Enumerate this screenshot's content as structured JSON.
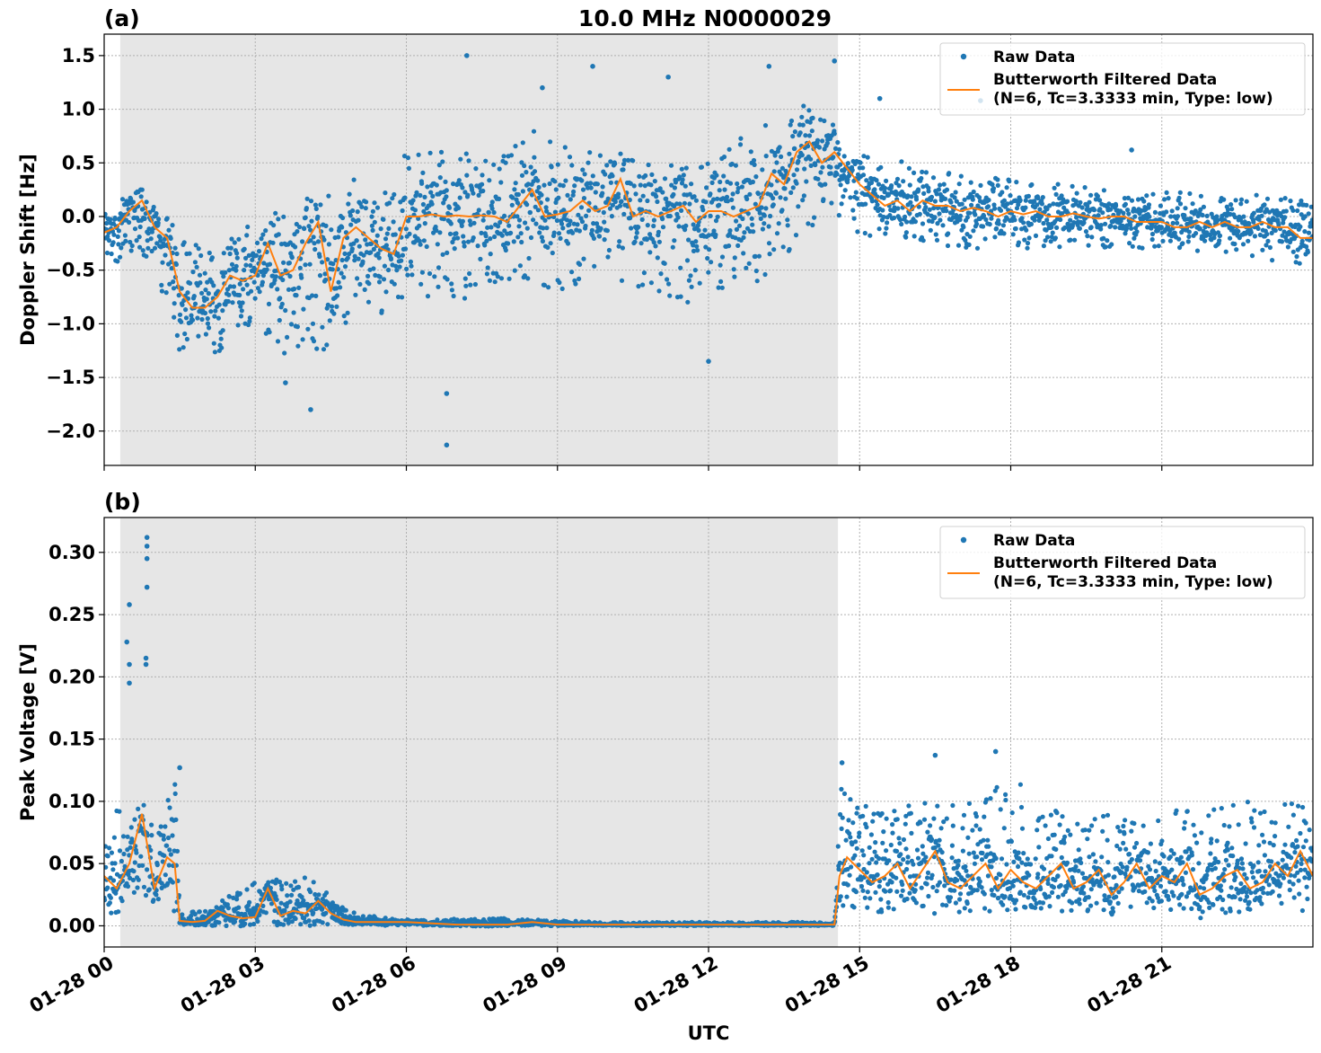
{
  "figure": {
    "title": "10.0 MHz N0000029",
    "xlabel": "UTC"
  },
  "colors": {
    "raw": "#1f77b4",
    "filtered": "#ff7f0e",
    "night_shade": "#e6e6e6",
    "grid": "#b0b0b0"
  },
  "chart_data": [
    {
      "type": "scatter",
      "panel_label": "(a)",
      "title": "10.0 MHz N0000029",
      "xlabel": "",
      "ylabel": "Doppler Shift [Hz]",
      "x_range_hours": [
        0,
        24
      ],
      "ylim": [
        -2.32,
        1.7
      ],
      "yticks": [
        -2.0,
        -1.5,
        -1.0,
        -0.5,
        0.0,
        0.5,
        1.0,
        1.5
      ],
      "ytick_labels": [
        "−2.0",
        "−1.5",
        "−1.0",
        "−0.5",
        "0.0",
        "0.5",
        "1.0",
        "1.5"
      ],
      "xticks_hours": [
        0,
        3,
        6,
        9,
        12,
        15,
        18,
        21
      ],
      "xtick_labels": [
        "01-28 00",
        "01-28 03",
        "01-28 06",
        "01-28 09",
        "01-28 12",
        "01-28 15",
        "01-28 18",
        "01-28 21"
      ],
      "grid": true,
      "legend_placement": "top-right",
      "legend": [
        "Raw Data",
        "Butterworth Filtered Data",
        "(N=6, Tc=3.3333 min, Type: low)"
      ],
      "shaded_region_hours": [
        0.32,
        14.57
      ],
      "series": [
        {
          "name": "Butterworth Filtered Data",
          "kind": "line",
          "x": [
            0,
            0.25,
            0.5,
            0.75,
            1,
            1.25,
            1.5,
            1.75,
            2,
            2.25,
            2.5,
            2.75,
            3,
            3.25,
            3.5,
            3.75,
            4,
            4.25,
            4.5,
            4.75,
            5,
            5.25,
            5.5,
            5.75,
            6,
            6.25,
            6.5,
            6.75,
            7,
            7.25,
            7.5,
            7.75,
            8,
            8.25,
            8.5,
            8.75,
            9,
            9.25,
            9.5,
            9.75,
            10,
            10.25,
            10.5,
            10.75,
            11,
            11.25,
            11.5,
            11.75,
            12,
            12.25,
            12.5,
            12.75,
            13,
            13.25,
            13.5,
            13.75,
            14,
            14.25,
            14.5,
            14.75,
            15,
            15.25,
            15.5,
            15.75,
            16,
            16.25,
            16.5,
            16.75,
            17,
            17.25,
            17.5,
            17.75,
            18,
            18.25,
            18.5,
            18.75,
            19,
            19.25,
            19.5,
            19.75,
            20,
            20.25,
            20.5,
            20.75,
            21,
            21.25,
            21.5,
            21.75,
            22,
            22.25,
            22.5,
            22.75,
            23,
            23.25,
            23.5,
            23.75,
            24
          ],
          "y": [
            -0.15,
            -0.1,
            0.05,
            0.15,
            -0.1,
            -0.2,
            -0.7,
            -0.85,
            -0.85,
            -0.75,
            -0.55,
            -0.6,
            -0.55,
            -0.25,
            -0.55,
            -0.5,
            -0.25,
            -0.05,
            -0.7,
            -0.2,
            -0.1,
            -0.2,
            -0.3,
            -0.35,
            0.0,
            0.0,
            0.02,
            0.0,
            0.01,
            0.0,
            0.01,
            0.0,
            -0.05,
            0.1,
            0.25,
            0.0,
            0.02,
            0.05,
            0.15,
            0.05,
            0.1,
            0.35,
            0.0,
            0.05,
            0.0,
            0.05,
            0.1,
            -0.05,
            0.05,
            0.05,
            0.0,
            0.05,
            0.1,
            0.4,
            0.3,
            0.6,
            0.7,
            0.5,
            0.6,
            0.45,
            0.3,
            0.2,
            0.1,
            0.15,
            0.05,
            0.15,
            0.1,
            0.1,
            0.05,
            0.08,
            0.05,
            0.0,
            0.05,
            0.02,
            0.05,
            0.0,
            0.0,
            0.03,
            0.0,
            -0.02,
            0.0,
            0.0,
            -0.05,
            -0.05,
            -0.05,
            -0.1,
            -0.1,
            -0.05,
            -0.1,
            -0.05,
            -0.1,
            -0.1,
            -0.05,
            -0.1,
            -0.1,
            -0.2,
            -0.2
          ]
        },
        {
          "name": "Raw Data",
          "kind": "scatter",
          "spread_x": [
            0,
            1,
            1.5,
            2,
            2.5,
            3,
            3.5,
            4,
            4.5,
            5,
            5.5,
            6,
            7,
            8,
            8.5,
            9,
            10,
            11,
            12,
            13,
            13.5,
            14,
            14.5,
            14.6,
            15,
            16,
            17,
            18,
            19,
            20,
            21,
            22,
            23,
            24
          ],
          "spread_lower": [
            -0.4,
            -0.5,
            -1.3,
            -1.35,
            -1.2,
            -1.0,
            -1.3,
            -1.2,
            -1.4,
            -0.8,
            -1.2,
            -0.7,
            -0.8,
            -0.6,
            -0.6,
            -0.7,
            -0.6,
            -0.8,
            -0.8,
            -0.6,
            -0.4,
            -0.2,
            0.1,
            0.0,
            -0.2,
            -0.2,
            -0.3,
            -0.3,
            -0.3,
            -0.3,
            -0.3,
            -0.35,
            -0.4,
            -0.5
          ],
          "spread_upper": [
            0.2,
            0.1,
            -0.1,
            -0.3,
            -0.2,
            0.0,
            0.1,
            0.2,
            0.2,
            0.4,
            0.3,
            0.6,
            0.6,
            0.6,
            0.8,
            0.7,
            0.6,
            0.5,
            0.6,
            0.8,
            1.0,
            1.1,
            1.0,
            0.4,
            0.6,
            0.5,
            0.4,
            0.35,
            0.3,
            0.25,
            0.25,
            0.2,
            0.2,
            0.15
          ],
          "spikes": [
            [
              4.1,
              -1.8
            ],
            [
              6.8,
              -2.13
            ],
            [
              6.8,
              -1.65
            ],
            [
              7.2,
              1.5
            ],
            [
              8.7,
              1.2
            ],
            [
              9.7,
              1.4
            ],
            [
              11.2,
              1.3
            ],
            [
              12.0,
              -1.35
            ],
            [
              13.2,
              1.4
            ],
            [
              14.5,
              1.45
            ],
            [
              15.4,
              1.1
            ],
            [
              17.4,
              1.08
            ],
            [
              20.4,
              0.62
            ],
            [
              3.6,
              -1.55
            ]
          ]
        }
      ]
    },
    {
      "type": "scatter",
      "panel_label": "(b)",
      "title": "",
      "xlabel": "UTC",
      "ylabel": "Peak Voltage [V]",
      "x_range_hours": [
        0,
        24
      ],
      "ylim": [
        -0.017,
        0.328
      ],
      "yticks": [
        0.0,
        0.05,
        0.1,
        0.15,
        0.2,
        0.25,
        0.3
      ],
      "ytick_labels": [
        "0.00",
        "0.05",
        "0.10",
        "0.15",
        "0.20",
        "0.25",
        "0.30"
      ],
      "xticks_hours": [
        0,
        3,
        6,
        9,
        12,
        15,
        18,
        21
      ],
      "xtick_labels": [
        "01-28 00",
        "01-28 03",
        "01-28 06",
        "01-28 09",
        "01-28 12",
        "01-28 15",
        "01-28 18",
        "01-28 21"
      ],
      "grid": true,
      "legend_placement": "top-right",
      "legend": [
        "Raw Data",
        "Butterworth Filtered Data",
        "(N=6, Tc=3.3333 min, Type: low)"
      ],
      "shaded_region_hours": [
        0.32,
        14.57
      ],
      "series": [
        {
          "name": "Butterworth Filtered Data",
          "kind": "line",
          "x": [
            0,
            0.25,
            0.5,
            0.75,
            1,
            1.25,
            1.4,
            1.5,
            1.75,
            2,
            2.25,
            2.5,
            2.75,
            3,
            3.25,
            3.5,
            3.75,
            4,
            4.25,
            4.5,
            4.75,
            5,
            5.5,
            6,
            7,
            8,
            8.5,
            9,
            10,
            11,
            12,
            13,
            14,
            14.5,
            14.6,
            14.75,
            15,
            15.25,
            15.5,
            15.75,
            16,
            16.25,
            16.5,
            16.75,
            17,
            17.25,
            17.5,
            17.75,
            18,
            18.25,
            18.5,
            18.75,
            19,
            19.25,
            19.5,
            19.75,
            20,
            20.25,
            20.5,
            20.75,
            21,
            21.25,
            21.5,
            21.75,
            22,
            22.25,
            22.5,
            22.75,
            23,
            23.25,
            23.5,
            23.75,
            24
          ],
          "y": [
            0.04,
            0.03,
            0.05,
            0.09,
            0.03,
            0.055,
            0.05,
            0.004,
            0.003,
            0.004,
            0.012,
            0.008,
            0.006,
            0.007,
            0.03,
            0.008,
            0.012,
            0.01,
            0.02,
            0.01,
            0.005,
            0.003,
            0.003,
            0.003,
            0.001,
            0.001,
            0.003,
            0.001,
            0.001,
            0.001,
            0.001,
            0.001,
            0.001,
            0.001,
            0.04,
            0.055,
            0.045,
            0.035,
            0.04,
            0.05,
            0.03,
            0.045,
            0.06,
            0.035,
            0.03,
            0.04,
            0.05,
            0.03,
            0.045,
            0.035,
            0.03,
            0.04,
            0.05,
            0.03,
            0.035,
            0.045,
            0.025,
            0.035,
            0.05,
            0.03,
            0.04,
            0.035,
            0.05,
            0.025,
            0.03,
            0.04,
            0.045,
            0.03,
            0.035,
            0.05,
            0.04,
            0.06,
            0.04
          ]
        },
        {
          "name": "Raw Data",
          "kind": "scatter",
          "spread_x": [
            0,
            0.5,
            1,
            1.4,
            1.5,
            2,
            3,
            4,
            5,
            6,
            8,
            10,
            12,
            14,
            14.5,
            14.6,
            15,
            16,
            17,
            18,
            19,
            20,
            21,
            22,
            23,
            24
          ],
          "spread_lower": [
            0.01,
            0.01,
            0.012,
            0.01,
            0.0,
            0.0,
            0.0,
            0.0,
            0.0,
            0.0,
            0.0,
            0.0,
            0.0,
            0.0,
            0.0,
            0.01,
            0.01,
            0.01,
            0.01,
            0.01,
            0.01,
            0.01,
            0.01,
            0.01,
            0.01,
            0.01
          ],
          "spread_upper": [
            0.1,
            0.09,
            0.08,
            0.12,
            0.012,
            0.015,
            0.035,
            0.04,
            0.01,
            0.005,
            0.006,
            0.003,
            0.003,
            0.003,
            0.003,
            0.12,
            0.1,
            0.1,
            0.1,
            0.12,
            0.09,
            0.09,
            0.09,
            0.1,
            0.1,
            0.1
          ],
          "spikes": [
            [
              0.5,
              0.258
            ],
            [
              0.45,
              0.228
            ],
            [
              0.85,
              0.312
            ],
            [
              0.85,
              0.305
            ],
            [
              0.85,
              0.295
            ],
            [
              0.85,
              0.272
            ],
            [
              0.83,
              0.215
            ],
            [
              0.83,
              0.21
            ],
            [
              0.5,
              0.21
            ],
            [
              0.5,
              0.195
            ],
            [
              1.5,
              0.127
            ],
            [
              14.65,
              0.131
            ],
            [
              16.5,
              0.137
            ],
            [
              17.7,
              0.14
            ]
          ]
        }
      ]
    }
  ]
}
